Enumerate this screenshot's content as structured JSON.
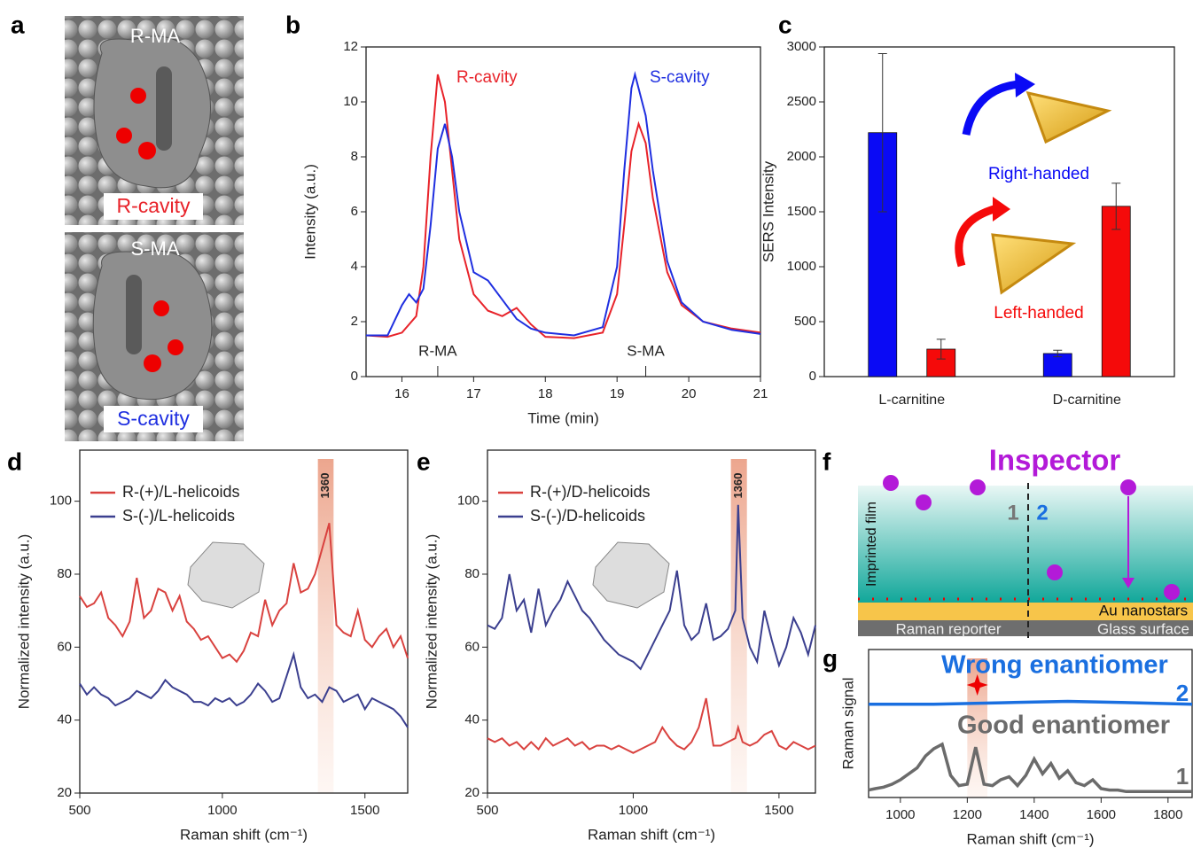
{
  "figure": {
    "panel_labels": [
      "a",
      "b",
      "c",
      "d",
      "e",
      "f",
      "g"
    ],
    "panel_a": {
      "top_molecule": "R-MA",
      "top_cavity": "R-cavity",
      "bottom_molecule": "S-MA",
      "bottom_cavity": "S-cavity"
    },
    "panel_f": {
      "title": "Inspector",
      "film": "Imprinted film",
      "zone_1": "1",
      "zone_2": "2",
      "nanostars": "Au nanostars",
      "reporter": "Raman reporter",
      "glass": "Glass surface"
    }
  },
  "chart_data": [
    {
      "type": "line",
      "xlabel": "Time (min)",
      "ylabel": "Intensity (a.u.)",
      "xlim": [
        15.5,
        21
      ],
      "ylim": [
        0,
        12
      ],
      "xticks": [
        16,
        17,
        18,
        19,
        20,
        21
      ],
      "yticks": [
        0,
        2,
        4,
        6,
        8,
        10,
        12
      ],
      "annotations": [
        {
          "text": "R-MA",
          "x": 16.5
        },
        {
          "text": "S-MA",
          "x": 19.4
        }
      ],
      "series": [
        {
          "name": "R-cavity",
          "color": "#e8232a",
          "x": [
            15.5,
            15.8,
            16.0,
            16.2,
            16.3,
            16.4,
            16.5,
            16.6,
            16.7,
            16.8,
            17.0,
            17.2,
            17.4,
            17.6,
            17.8,
            18.0,
            18.4,
            18.8,
            19.0,
            19.1,
            19.2,
            19.3,
            19.4,
            19.5,
            19.7,
            19.9,
            20.2,
            20.6,
            21
          ],
          "values": [
            1.5,
            1.45,
            1.6,
            2.2,
            4,
            8,
            11,
            10,
            7.5,
            5,
            3,
            2.4,
            2.2,
            2.5,
            1.9,
            1.45,
            1.4,
            1.6,
            3,
            5.5,
            8.2,
            9.2,
            8.5,
            6.5,
            3.8,
            2.6,
            2.0,
            1.75,
            1.6
          ]
        },
        {
          "name": "S-cavity",
          "color": "#1f2fe0",
          "x": [
            15.5,
            15.8,
            16.0,
            16.1,
            16.2,
            16.3,
            16.4,
            16.5,
            16.6,
            16.7,
            16.8,
            17.0,
            17.2,
            17.4,
            17.6,
            17.8,
            18.0,
            18.4,
            18.8,
            19.0,
            19.1,
            19.2,
            19.25,
            19.4,
            19.5,
            19.7,
            19.9,
            20.2,
            20.6,
            21
          ],
          "values": [
            1.5,
            1.5,
            2.6,
            3.0,
            2.7,
            3.2,
            5.5,
            8.3,
            9.2,
            8,
            6,
            3.8,
            3.5,
            2.8,
            2.1,
            1.75,
            1.6,
            1.5,
            1.8,
            4,
            7.5,
            10.5,
            11,
            9.5,
            7.5,
            4.2,
            2.7,
            2.0,
            1.7,
            1.55
          ]
        }
      ]
    },
    {
      "type": "bar",
      "ylabel": "SERS Intensity",
      "ylim": [
        0,
        3000
      ],
      "yticks": [
        0,
        500,
        1000,
        1500,
        2000,
        2500,
        3000
      ],
      "categories": [
        "L-carnitine",
        "D-carnitine"
      ],
      "series": [
        {
          "name": "Right-handed",
          "color": "#0a0af5",
          "values": [
            2220,
            210
          ],
          "errors": [
            720,
            30
          ]
        },
        {
          "name": "Left-handed",
          "color": "#f50a0a",
          "values": [
            250,
            1550
          ],
          "errors": [
            90,
            210
          ]
        }
      ]
    },
    {
      "type": "line",
      "xlabel": "Raman shift (cm⁻¹)",
      "ylabel": "Normalized intensity (a.u.)",
      "xlim": [
        500,
        1650
      ],
      "ylim": [
        20,
        114
      ],
      "xticks": [
        500,
        1000,
        1500
      ],
      "yticks": [
        20,
        40,
        60,
        80,
        100
      ],
      "legend": "upper left",
      "band": [
        1335,
        1390
      ],
      "band_label": 1360,
      "x": [
        500,
        525,
        550,
        575,
        600,
        625,
        650,
        675,
        700,
        725,
        750,
        775,
        800,
        825,
        850,
        875,
        900,
        925,
        950,
        975,
        1000,
        1025,
        1050,
        1075,
        1100,
        1125,
        1150,
        1175,
        1200,
        1225,
        1250,
        1275,
        1300,
        1325,
        1350,
        1375,
        1400,
        1425,
        1450,
        1475,
        1500,
        1525,
        1550,
        1575,
        1600,
        1625,
        1650
      ],
      "series": [
        {
          "name": "R-(+)/L-helicoids",
          "color": "#d9423f",
          "values": [
            74,
            71,
            72,
            75,
            68,
            66,
            63,
            67,
            79,
            68,
            70,
            76,
            75,
            70,
            74,
            67,
            65,
            62,
            63,
            60,
            57,
            58,
            56,
            59,
            64,
            63,
            73,
            66,
            70,
            72,
            83,
            75,
            76,
            80,
            87,
            94,
            66,
            64,
            63,
            70,
            62,
            60,
            63,
            65,
            60,
            63,
            57
          ]
        },
        {
          "name": "S-(-)/L-helicoids",
          "color": "#3b3f8f",
          "values": [
            50,
            47,
            49,
            47,
            46,
            44,
            45,
            46,
            48,
            47,
            46,
            48,
            51,
            49,
            48,
            47,
            45,
            45,
            44,
            46,
            45,
            46,
            44,
            45,
            47,
            50,
            48,
            45,
            46,
            52,
            58,
            49,
            46,
            47,
            45,
            49,
            48,
            45,
            46,
            47,
            43,
            46,
            45,
            44,
            43,
            41,
            38
          ]
        }
      ]
    },
    {
      "type": "line",
      "xlabel": "Raman shift (cm⁻¹)",
      "ylabel": "Normalized intensity (a.u.)",
      "xlim": [
        500,
        1625
      ],
      "ylim": [
        20,
        114
      ],
      "xticks": [
        500,
        1000,
        1500
      ],
      "yticks": [
        20,
        40,
        60,
        80,
        100
      ],
      "legend": "upper left",
      "band": [
        1335,
        1390
      ],
      "band_label": 1360,
      "x": [
        500,
        525,
        550,
        575,
        600,
        625,
        650,
        675,
        700,
        725,
        750,
        775,
        800,
        825,
        850,
        875,
        900,
        925,
        950,
        975,
        1000,
        1025,
        1050,
        1075,
        1100,
        1125,
        1150,
        1175,
        1200,
        1225,
        1250,
        1275,
        1300,
        1325,
        1350,
        1360,
        1375,
        1400,
        1425,
        1450,
        1475,
        1500,
        1525,
        1550,
        1575,
        1600,
        1625
      ],
      "series": [
        {
          "name": "R-(+)/D-helicoids",
          "color": "#d9423f",
          "values": [
            35,
            34,
            35,
            33,
            34,
            32,
            34,
            32,
            35,
            33,
            34,
            35,
            33,
            34,
            32,
            33,
            33,
            32,
            33,
            32,
            31,
            32,
            33,
            34,
            38,
            35,
            33,
            32,
            34,
            38,
            46,
            33,
            33,
            34,
            35,
            38,
            34,
            33,
            34,
            36,
            37,
            33,
            32,
            34,
            33,
            32,
            33
          ]
        },
        {
          "name": "S-(-)/D-helicoids",
          "color": "#3b3f8f",
          "values": [
            66,
            65,
            68,
            80,
            70,
            73,
            64,
            76,
            66,
            70,
            73,
            78,
            74,
            70,
            68,
            65,
            62,
            60,
            58,
            57,
            56,
            54,
            58,
            62,
            66,
            70,
            81,
            66,
            62,
            64,
            72,
            62,
            63,
            65,
            70,
            99,
            68,
            60,
            56,
            70,
            62,
            55,
            60,
            68,
            64,
            58,
            66
          ]
        }
      ]
    },
    {
      "type": "line",
      "xlabel": "Raman shift (cm⁻¹)",
      "ylabel": "Raman signal",
      "xlim": [
        905,
        1872
      ],
      "ylim": [
        0,
        10
      ],
      "xticks": [
        1000,
        1200,
        1400,
        1600,
        1800
      ],
      "band": [
        1200,
        1260
      ],
      "marker_x": 1230,
      "series": [
        {
          "name": "Wrong enantiomer",
          "tag": "2",
          "color": "#1a6fe0",
          "x": [
            905,
            1100,
            1300,
            1500,
            1700,
            1872
          ],
          "values": [
            6.3,
            6.3,
            6.4,
            6.5,
            6.4,
            6.3
          ]
        },
        {
          "name": "Good enantiomer",
          "tag": "1",
          "color": "#6b6b6b",
          "x": [
            905,
            925,
            950,
            975,
            1000,
            1025,
            1050,
            1075,
            1100,
            1125,
            1150,
            1175,
            1200,
            1225,
            1250,
            1275,
            1300,
            1325,
            1350,
            1375,
            1400,
            1425,
            1450,
            1475,
            1500,
            1525,
            1550,
            1575,
            1600,
            1625,
            1650,
            1675,
            1700,
            1725,
            1750,
            1775,
            1800,
            1825,
            1850,
            1872
          ],
          "values": [
            0.5,
            0.6,
            0.7,
            0.9,
            1.2,
            1.6,
            2.0,
            2.8,
            3.3,
            3.6,
            1.5,
            0.8,
            0.9,
            3.4,
            0.9,
            0.8,
            1.2,
            1.4,
            0.8,
            1.5,
            2.6,
            1.6,
            2.3,
            1.3,
            1.8,
            1.0,
            0.8,
            1.2,
            0.6,
            0.5,
            0.5,
            0.4,
            0.4,
            0.4,
            0.4,
            0.4,
            0.4,
            0.4,
            0.4,
            0.4
          ]
        }
      ]
    }
  ]
}
